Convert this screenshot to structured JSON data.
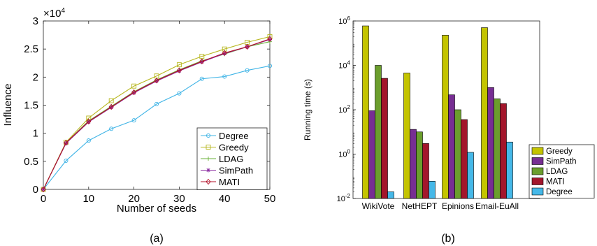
{
  "chart_data": [
    {
      "type": "line",
      "panel_label": "(a)",
      "title": "",
      "xlabel": "Number of seeds",
      "ylabel": "Influence",
      "y_multiplier_label": "×10",
      "y_multiplier_exp": "4",
      "xlim": [
        0,
        50
      ],
      "ylim": [
        0,
        3
      ],
      "xticks": [
        "0",
        "10",
        "20",
        "30",
        "40",
        "50"
      ],
      "yticks": [
        "0",
        "0.5",
        "1",
        "1.5",
        "2",
        "2.5",
        "3"
      ],
      "grid": false,
      "legend_position": "lower-right",
      "x": [
        0,
        5,
        10,
        15,
        20,
        25,
        30,
        35,
        40,
        45,
        50
      ],
      "series": [
        {
          "name": "Degree",
          "color": "#3fb4e6",
          "marker": "circle",
          "values": [
            0,
            0.51,
            0.87,
            1.08,
            1.23,
            1.52,
            1.71,
            1.97,
            2.01,
            2.12,
            2.2
          ]
        },
        {
          "name": "Greedy",
          "color": "#b7b71e",
          "marker": "square",
          "values": [
            0,
            0.84,
            1.27,
            1.58,
            1.84,
            2.02,
            2.22,
            2.37,
            2.5,
            2.62,
            2.72
          ]
        },
        {
          "name": "LDAG",
          "color": "#6ab23a",
          "marker": "plus",
          "values": [
            0,
            0.83,
            1.22,
            1.48,
            1.74,
            1.95,
            2.13,
            2.29,
            2.41,
            2.54,
            2.63
          ]
        },
        {
          "name": "SimPath",
          "color": "#8a2ba0",
          "marker": "star",
          "values": [
            0,
            0.82,
            1.2,
            1.46,
            1.72,
            1.93,
            2.11,
            2.27,
            2.42,
            2.54,
            2.67
          ]
        },
        {
          "name": "MATI",
          "color": "#b3122a",
          "marker": "diamond",
          "values": [
            0,
            0.83,
            1.21,
            1.47,
            1.73,
            1.94,
            2.12,
            2.28,
            2.43,
            2.54,
            2.68
          ]
        }
      ]
    },
    {
      "type": "bar",
      "panel_label": "(b)",
      "title": "",
      "xlabel": "",
      "ylabel": "Running time (s)",
      "y_scale": "log",
      "ylim": [
        0.01,
        1000000
      ],
      "yticks": [
        {
          "value": 0.01,
          "base": "10",
          "exp": "-2"
        },
        {
          "value": 1,
          "base": "10",
          "exp": "0"
        },
        {
          "value": 100,
          "base": "10",
          "exp": "2"
        },
        {
          "value": 10000,
          "base": "10",
          "exp": "4"
        },
        {
          "value": 1000000,
          "base": "10",
          "exp": "6"
        }
      ],
      "grid": false,
      "legend_position": "right",
      "categories": [
        "WikiVote",
        "NetHEPT",
        "Epinions",
        "Email-EuAll"
      ],
      "series": [
        {
          "name": "Greedy",
          "color": "#c4c400",
          "values": [
            600000,
            4500,
            230000,
            500000
          ]
        },
        {
          "name": "SimPath",
          "color": "#772e93",
          "values": [
            90,
            13,
            470,
            1000
          ]
        },
        {
          "name": "LDAG",
          "color": "#6b9e2d",
          "values": [
            10000,
            10,
            100,
            310
          ]
        },
        {
          "name": "MATI",
          "color": "#a3162b",
          "values": [
            2600,
            3,
            36,
            190
          ]
        },
        {
          "name": "Degree",
          "color": "#45b8e8",
          "values": [
            0.02,
            0.06,
            1.2,
            3.5
          ]
        }
      ]
    }
  ]
}
